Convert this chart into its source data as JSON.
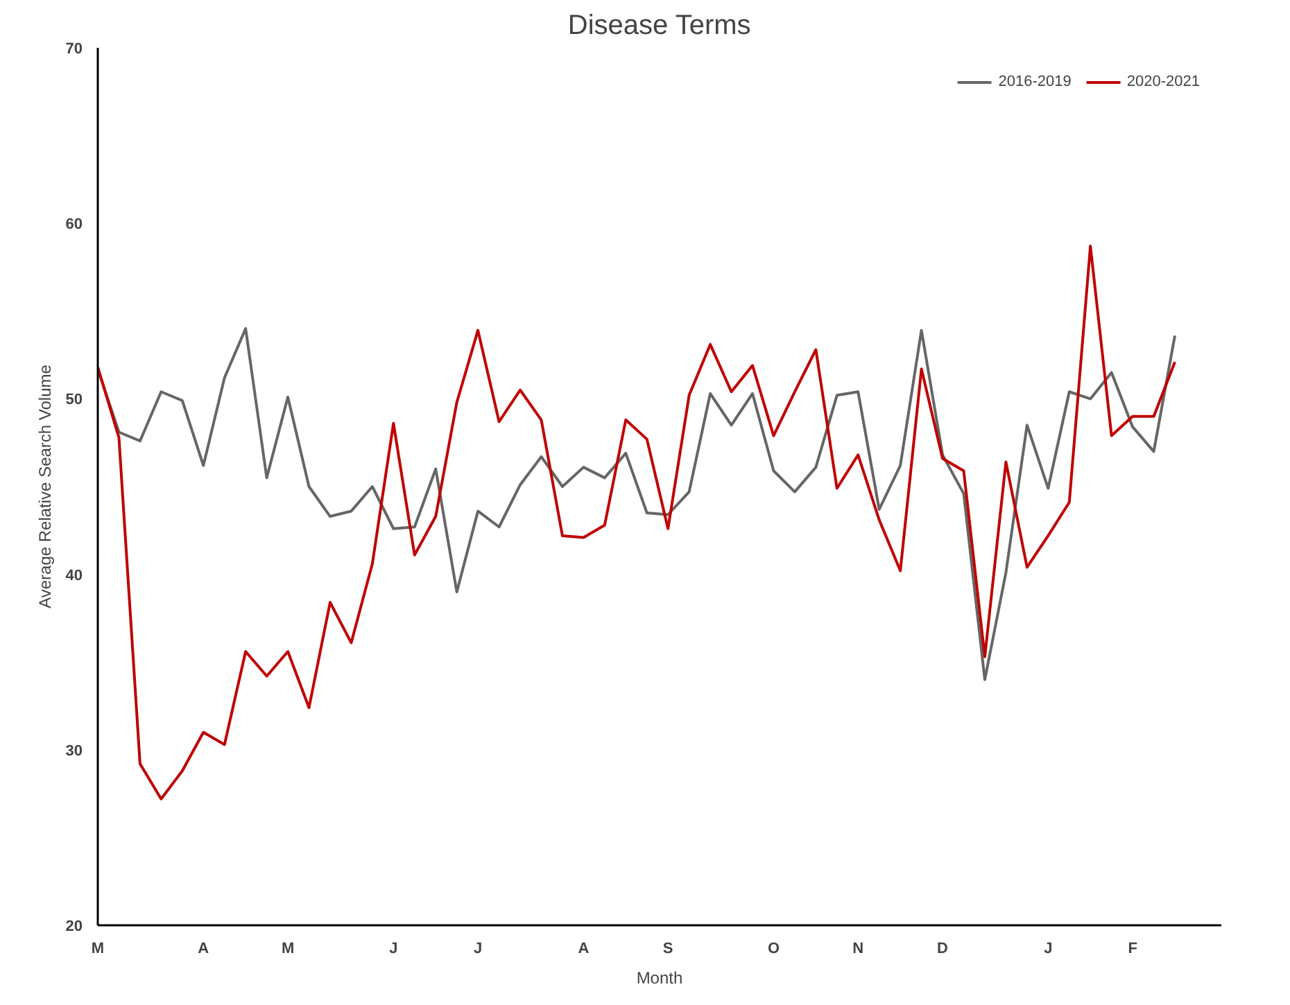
{
  "chart_data": {
    "type": "line",
    "title": "Disease Terms",
    "xlabel": "Month",
    "ylabel": "Average Relative Search Volume",
    "categories": [
      "M",
      null,
      null,
      null,
      null,
      "A",
      null,
      null,
      null,
      "M",
      null,
      null,
      null,
      null,
      "J",
      null,
      null,
      null,
      "J",
      null,
      null,
      null,
      null,
      "A",
      null,
      null,
      null,
      "S",
      null,
      null,
      null,
      null,
      "O",
      null,
      null,
      null,
      "N",
      null,
      null,
      null,
      "D",
      null,
      null,
      null,
      null,
      "J",
      null,
      null,
      null,
      "F",
      null,
      null
    ],
    "series": [
      {
        "name": "2016-2019",
        "color": "#666666",
        "values": [
          51.7,
          48.1,
          47.6,
          50.4,
          49.9,
          46.2,
          51.2,
          54.0,
          45.5,
          50.1,
          45.0,
          43.3,
          43.6,
          45.0,
          42.6,
          42.7,
          46.0,
          39.0,
          43.6,
          42.7,
          45.1,
          46.7,
          45.0,
          46.1,
          45.5,
          46.9,
          43.5,
          43.4,
          44.7,
          50.3,
          48.5,
          50.3,
          45.9,
          44.7,
          46.1,
          50.2,
          50.4,
          43.7,
          46.2,
          53.9,
          46.8,
          44.6,
          34.0,
          40.1,
          48.5,
          44.9,
          50.4,
          50.0,
          51.5,
          48.4,
          47.0,
          53.6
        ]
      },
      {
        "name": "2020-2021",
        "color": "#c00000",
        "values": [
          51.8,
          47.8,
          29.2,
          27.2,
          28.8,
          31.0,
          30.3,
          35.6,
          34.2,
          35.6,
          32.4,
          38.4,
          36.1,
          40.6,
          48.6,
          41.1,
          43.3,
          49.8,
          53.9,
          48.7,
          50.5,
          48.8,
          42.2,
          42.1,
          42.8,
          48.8,
          47.7,
          42.6,
          50.2,
          53.1,
          50.4,
          51.9,
          47.9,
          50.4,
          52.8,
          44.9,
          46.8,
          43.1,
          40.2,
          51.7,
          46.6,
          45.9,
          35.3,
          46.4,
          40.4,
          42.2,
          44.1,
          58.7,
          47.9,
          49.0,
          49.0,
          52.1
        ]
      }
    ],
    "ylim": [
      20,
      70
    ],
    "yticks": [
      20,
      30,
      40,
      50,
      60,
      70
    ],
    "grid": false,
    "legend": "top right"
  }
}
